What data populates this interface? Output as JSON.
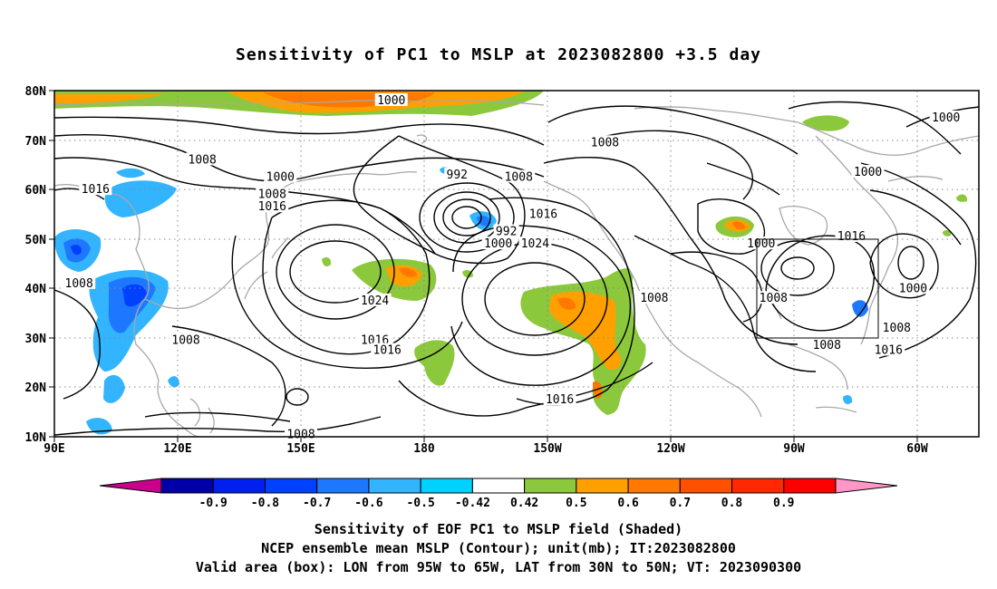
{
  "title": "Sensitivity of PC1 to MSLP at 2023082800 +3.5 day",
  "map": {
    "lon_ticks": [
      "90E",
      "120E",
      "150E",
      "180",
      "150W",
      "120W",
      "90W",
      "60W"
    ],
    "lat_ticks": [
      "80N",
      "70N",
      "60N",
      "50N",
      "40N",
      "30N",
      "20N",
      "10N"
    ],
    "lon_range_deg": [
      90,
      315
    ],
    "lat_range_deg": [
      10,
      80
    ],
    "valid_box": {
      "lon_deg_east": [
        265,
        295
      ],
      "lat_deg": [
        30,
        50
      ]
    },
    "contour_labels": [
      {
        "text": "1000",
        "lon": 172,
        "lat": 78
      },
      {
        "text": "1000",
        "lon": 307,
        "lat": 74.5
      },
      {
        "text": "1008",
        "lon": 224,
        "lat": 69.5
      },
      {
        "text": "1008",
        "lon": 126,
        "lat": 66
      },
      {
        "text": "992",
        "lon": 188,
        "lat": 63
      },
      {
        "text": "1000",
        "lon": 288,
        "lat": 63.5
      },
      {
        "text": "1000",
        "lon": 145,
        "lat": 62.5
      },
      {
        "text": "1008",
        "lon": 203,
        "lat": 62.5
      },
      {
        "text": "1016",
        "lon": 100,
        "lat": 60
      },
      {
        "text": "1008",
        "lon": 143,
        "lat": 59
      },
      {
        "text": "1016",
        "lon": 143,
        "lat": 56.5
      },
      {
        "text": "1016",
        "lon": 209,
        "lat": 55
      },
      {
        "text": "992",
        "lon": 200,
        "lat": 51.5
      },
      {
        "text": "1000",
        "lon": 198,
        "lat": 49
      },
      {
        "text": "1016",
        "lon": 284,
        "lat": 50.5
      },
      {
        "text": "1000",
        "lon": 262,
        "lat": 49
      },
      {
        "text": "1024",
        "lon": 207,
        "lat": 49
      },
      {
        "text": "1008",
        "lon": 96,
        "lat": 41
      },
      {
        "text": "1024",
        "lon": 168,
        "lat": 37.5
      },
      {
        "text": "1008",
        "lon": 236,
        "lat": 38
      },
      {
        "text": "1008",
        "lon": 265,
        "lat": 38
      },
      {
        "text": "1000",
        "lon": 299,
        "lat": 40
      },
      {
        "text": "1008",
        "lon": 295,
        "lat": 32
      },
      {
        "text": "1008",
        "lon": 122,
        "lat": 29.5
      },
      {
        "text": "1016",
        "lon": 168,
        "lat": 29.5
      },
      {
        "text": "1016",
        "lon": 171,
        "lat": 27.5
      },
      {
        "text": "1008",
        "lon": 278,
        "lat": 28.5
      },
      {
        "text": "1016",
        "lon": 293,
        "lat": 27.5
      },
      {
        "text": "1016",
        "lon": 213,
        "lat": 17.5
      },
      {
        "text": "1008",
        "lon": 150,
        "lat": 10.5
      }
    ]
  },
  "colorbar": {
    "labels": [
      "-0.9",
      "-0.8",
      "-0.7",
      "-0.6",
      "-0.5",
      "-0.42",
      "0.42",
      "0.5",
      "0.6",
      "0.7",
      "0.8",
      "0.9"
    ],
    "colors": [
      "#c8008c",
      "#0000a8",
      "#0020f0",
      "#0040ff",
      "#1e78ff",
      "#32b4ff",
      "#00d2ff",
      "#ffffff",
      "#8cc83c",
      "#ffa000",
      "#ff7800",
      "#ff5000",
      "#ff2800",
      "#ff0000",
      "#ff96c8"
    ]
  },
  "footer": {
    "line1": "Sensitivity of EOF PC1 to MSLP field (Shaded)",
    "line2": "NCEP ensemble mean MSLP (Contour); unit(mb); IT:2023082800",
    "line3": "Valid area (box): LON from 95W to 65W, LAT from 30N to 50N; VT: 2023090300"
  }
}
